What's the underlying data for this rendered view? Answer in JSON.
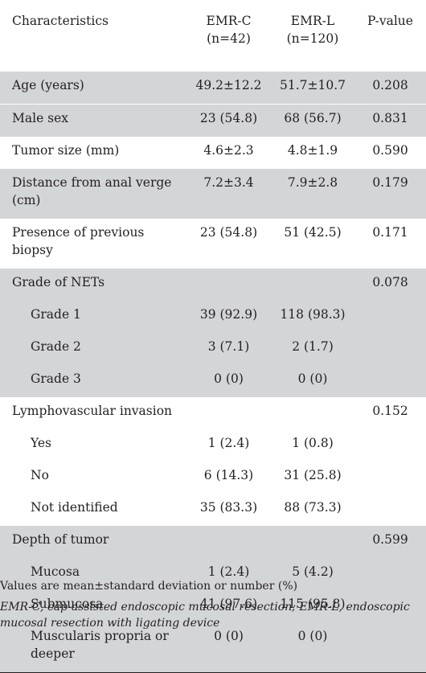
{
  "table": {
    "headers": {
      "characteristics": "Characteristics",
      "emrc": "EMR-C",
      "emrc_n": "(n=42)",
      "emrl": "EMR-L",
      "emrl_n": "(n=120)",
      "pvalue": "P-value"
    },
    "rows": [
      {
        "label": "Age (years)",
        "emrc": "49.2±12.2",
        "emrl": "51.7±10.7",
        "p": "0.208"
      },
      {
        "label": "Male sex",
        "emrc": "23 (54.8)",
        "emrl": "68 (56.7)",
        "p": "0.831"
      },
      {
        "label": "Tumor size (mm)",
        "emrc": "4.6±2.3",
        "emrl": "4.8±1.9",
        "p": "0.590"
      },
      {
        "label": "Distance from anal verge (cm)",
        "emrc": "7.2±3.4",
        "emrl": "7.9±2.8",
        "p": "0.179"
      },
      {
        "label": "Presence of previous biopsy",
        "emrc": "23 (54.8)",
        "emrl": "51 (42.5)",
        "p": "0.171"
      },
      {
        "label": "Grade of NETs",
        "emrc": "",
        "emrl": "",
        "p": "0.078"
      },
      {
        "label": "Grade 1",
        "emrc": "39 (92.9)",
        "emrl": "118 (98.3)",
        "p": ""
      },
      {
        "label": "Grade 2",
        "emrc": "3 (7.1)",
        "emrl": "2 (1.7)",
        "p": ""
      },
      {
        "label": "Grade 3",
        "emrc": "0 (0)",
        "emrl": "0 (0)",
        "p": ""
      },
      {
        "label": "Lymphovascular invasion",
        "emrc": "",
        "emrl": "",
        "p": "0.152"
      },
      {
        "label": "Yes",
        "emrc": "1 (2.4)",
        "emrl": "1 (0.8)",
        "p": ""
      },
      {
        "label": "No",
        "emrc": "6 (14.3)",
        "emrl": "31 (25.8)",
        "p": ""
      },
      {
        "label": "Not identified",
        "emrc": "35 (83.3)",
        "emrl": "88 (73.3)",
        "p": ""
      },
      {
        "label": "Depth of tumor",
        "emrc": "",
        "emrl": "",
        "p": "0.599"
      },
      {
        "label": "Mucosa",
        "emrc": "1 (2.4)",
        "emrl": "5 (4.2)",
        "p": ""
      },
      {
        "label": "Submucosa",
        "emrc": "41 (97.6)",
        "emrl": "115 (95.8)",
        "p": ""
      },
      {
        "label": "Muscularis propria or deeper",
        "emrc": "0 (0)",
        "emrl": "0 (0)",
        "p": ""
      }
    ]
  },
  "footnotes": {
    "values": "Values are mean±standard deviation or number (%)",
    "abbreviations": "EMR-C, cap-assisted endoscopic mucosal resection; EMR-L, endoscopic mucosal resection with ligating device"
  },
  "colors": {
    "shade": "#d4d5d7",
    "text": "#231f20",
    "background": "#ffffff"
  }
}
